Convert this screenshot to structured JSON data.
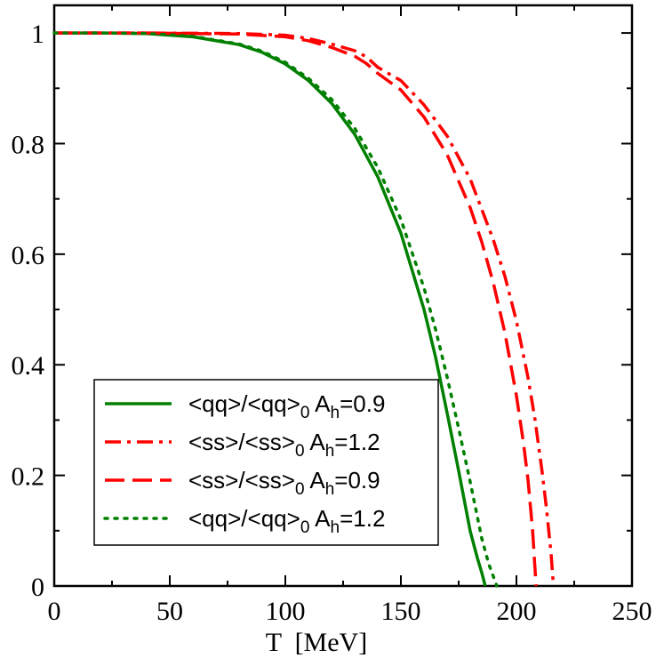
{
  "chart_data": {
    "type": "line",
    "title": "",
    "xlabel": "T  [MeV]",
    "ylabel": "",
    "xlim": [
      0,
      250
    ],
    "ylim": [
      0,
      1.05
    ],
    "x_ticks": [
      0,
      50,
      100,
      150,
      200,
      250
    ],
    "x_tick_labels": [
      "0",
      "50",
      "100",
      "150",
      "200",
      "250"
    ],
    "y_ticks": [
      0,
      0.2,
      0.4,
      0.6,
      0.8,
      1
    ],
    "y_tick_labels": [
      "0",
      "0.2",
      "0.4",
      "0.6",
      "0.8",
      "1"
    ],
    "grid": false,
    "legend_position": "lower-left",
    "series": [
      {
        "legend": {
          "main": "<qq>/<qq>",
          "sub0": "0",
          "mid": " A",
          "subh": "h",
          "rest": "=0.9"
        },
        "color": "#008000",
        "style": "solid",
        "x": [
          0,
          20,
          40,
          60,
          80,
          90,
          100,
          110,
          120,
          130,
          140,
          150,
          160,
          165,
          170,
          175,
          180,
          183,
          185,
          186.5
        ],
        "y": [
          1.0,
          1.0,
          0.999,
          0.993,
          0.979,
          0.965,
          0.944,
          0.914,
          0.873,
          0.817,
          0.74,
          0.638,
          0.5,
          0.414,
          0.313,
          0.208,
          0.099,
          0.052,
          0.024,
          0.0
        ]
      },
      {
        "legend": {
          "main": "<ss>/<ss>",
          "sub0": "0",
          "mid": "  A",
          "subh": "h",
          "rest": "=1.2"
        },
        "color": "#ff0000",
        "style": "dashdot",
        "x": [
          0,
          40,
          80,
          100,
          110,
          120,
          130,
          135,
          140,
          150,
          160,
          170,
          180,
          190,
          195,
          200,
          205,
          208,
          211,
          213,
          215,
          216
        ],
        "y": [
          1.0,
          1.0,
          0.999,
          0.996,
          0.99,
          0.98,
          0.968,
          0.957,
          0.938,
          0.914,
          0.87,
          0.814,
          0.736,
          0.626,
          0.56,
          0.479,
          0.377,
          0.302,
          0.21,
          0.14,
          0.058,
          0.0
        ]
      },
      {
        "legend": {
          "main": "<ss>/<ss>",
          "sub0": "0",
          "mid": "  A",
          "subh": "h",
          "rest": "=0.9"
        },
        "color": "#ff0000",
        "style": "dashed",
        "x": [
          0,
          40,
          80,
          100,
          110,
          120,
          130,
          135,
          140,
          150,
          160,
          170,
          180,
          185,
          190,
          195,
          200,
          203,
          205,
          207,
          208.5
        ],
        "y": [
          1.0,
          1.0,
          0.998,
          0.993,
          0.986,
          0.974,
          0.958,
          0.945,
          0.927,
          0.897,
          0.848,
          0.78,
          0.684,
          0.622,
          0.548,
          0.458,
          0.344,
          0.26,
          0.192,
          0.1,
          0.0
        ]
      },
      {
        "legend": {
          "main": "<qq>/<qq>",
          "sub0": "0",
          "mid": " A",
          "subh": "h",
          "rest": "=1.2"
        },
        "color": "#008000",
        "style": "dotted",
        "x": [
          0,
          20,
          40,
          60,
          80,
          90,
          100,
          110,
          120,
          130,
          140,
          150,
          160,
          165,
          170,
          175,
          180,
          185,
          188,
          191.5
        ],
        "y": [
          1.0,
          1.0,
          0.999,
          0.994,
          0.98,
          0.967,
          0.947,
          0.918,
          0.88,
          0.828,
          0.757,
          0.663,
          0.539,
          0.464,
          0.378,
          0.285,
          0.188,
          0.086,
          0.04,
          0.0
        ]
      }
    ]
  }
}
